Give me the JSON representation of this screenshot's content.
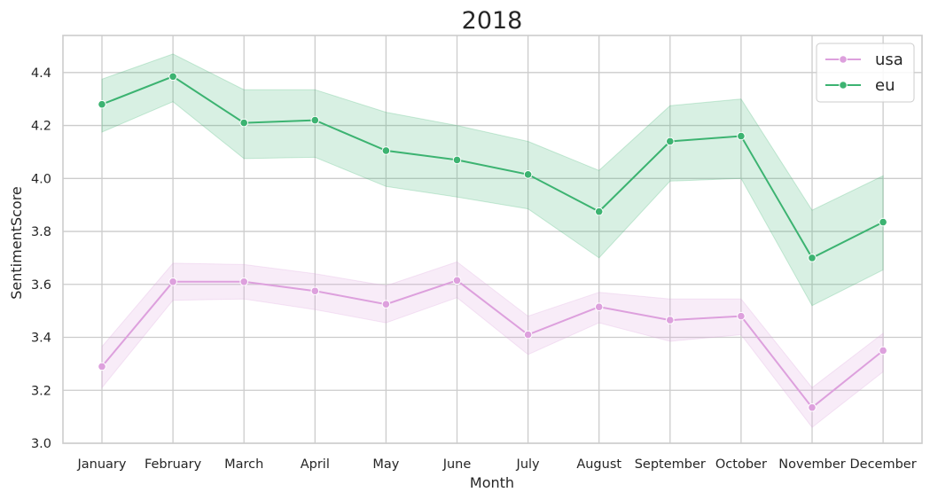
{
  "chart_data": {
    "type": "line",
    "title": "2018",
    "xlabel": "Month",
    "ylabel": "SentimentScore",
    "categories": [
      "January",
      "February",
      "March",
      "April",
      "May",
      "June",
      "July",
      "August",
      "September",
      "October",
      "November",
      "December"
    ],
    "ylim": [
      3.0,
      4.54
    ],
    "yticks": [
      "3.0",
      "3.2",
      "3.4",
      "3.6",
      "3.8",
      "4.0",
      "4.2",
      "4.4"
    ],
    "grid": true,
    "legend_position": "top-right",
    "series": [
      {
        "name": "usa",
        "color": "#dda0dd",
        "values": [
          3.29,
          3.61,
          3.61,
          3.575,
          3.525,
          3.615,
          3.41,
          3.515,
          3.465,
          3.48,
          3.135,
          3.35
        ],
        "ci_lower": [
          3.21,
          3.54,
          3.545,
          3.505,
          3.455,
          3.55,
          3.335,
          3.455,
          3.385,
          3.41,
          3.06,
          3.27
        ],
        "ci_upper": [
          3.365,
          3.68,
          3.675,
          3.64,
          3.595,
          3.685,
          3.48,
          3.57,
          3.545,
          3.545,
          3.21,
          3.415
        ]
      },
      {
        "name": "eu",
        "color": "#3cb371",
        "values": [
          4.28,
          4.385,
          4.21,
          4.22,
          4.105,
          4.07,
          4.015,
          3.875,
          4.14,
          4.16,
          3.7,
          3.835
        ],
        "ci_lower": [
          4.175,
          4.29,
          4.075,
          4.08,
          3.97,
          3.93,
          3.885,
          3.7,
          3.99,
          4.0,
          3.52,
          3.655
        ],
        "ci_upper": [
          4.375,
          4.47,
          4.335,
          4.335,
          4.25,
          4.2,
          4.14,
          4.03,
          4.275,
          4.3,
          3.88,
          4.01
        ]
      }
    ]
  }
}
